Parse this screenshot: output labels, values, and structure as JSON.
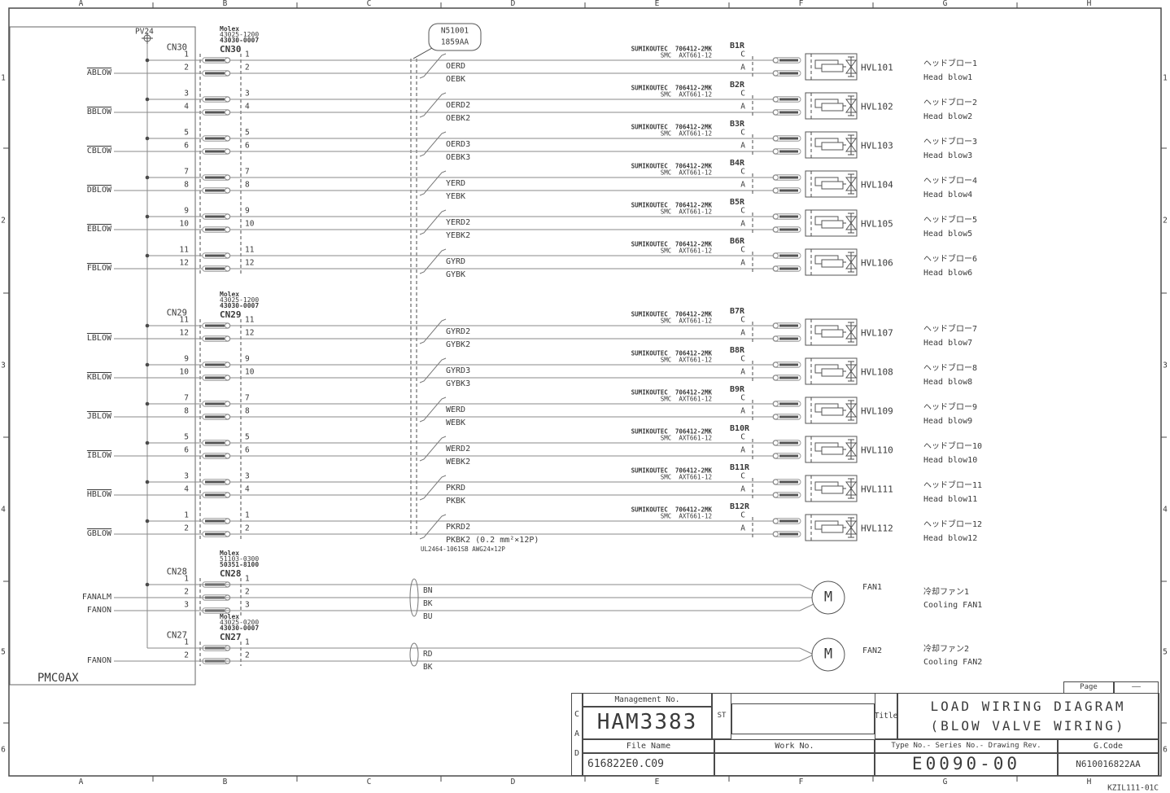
{
  "meta": {
    "doc_code": "KZIL111-01C"
  },
  "frame": {
    "columns": [
      "A",
      "B",
      "C",
      "D",
      "E",
      "F",
      "G",
      "H"
    ],
    "rows": [
      "1",
      "2",
      "3",
      "4",
      "5",
      "6"
    ]
  },
  "unit": {
    "name": "PMC0AX",
    "power": "PV24"
  },
  "harness_balloon": {
    "line1": "N51001",
    "line2": "1859AA"
  },
  "cable_spec": "UL2464-1061SB AWG24×12P",
  "valve_vendor": {
    "line1": "SUMIKOUTEC  706412-2MK",
    "line2": "SMC  AXT661-12"
  },
  "connector_groups": [
    {
      "id": "CN30",
      "maker": "Molex",
      "part_numbers": [
        "43025-1200",
        "43030-0007"
      ],
      "channels": [
        {
          "pins": [
            "1",
            "2"
          ],
          "signal": "ABLOW",
          "wires": [
            "OERD",
            "OEBK"
          ],
          "tag": "B1R",
          "pin_labels": [
            "C",
            "A"
          ],
          "valve": "HVL101",
          "name_jp": "ヘッドブロー1",
          "name_en": "Head blow1"
        },
        {
          "pins": [
            "3",
            "4"
          ],
          "signal": "BBLOW",
          "wires": [
            "OERD2",
            "OEBK2"
          ],
          "tag": "B2R",
          "pin_labels": [
            "C",
            "A"
          ],
          "valve": "HVL102",
          "name_jp": "ヘッドブロー2",
          "name_en": "Head blow2"
        },
        {
          "pins": [
            "5",
            "6"
          ],
          "signal": "CBLOW",
          "wires": [
            "OERD3",
            "OEBK3"
          ],
          "tag": "B3R",
          "pin_labels": [
            "C",
            "A"
          ],
          "valve": "HVL103",
          "name_jp": "ヘッドブロー3",
          "name_en": "Head blow3"
        },
        {
          "pins": [
            "7",
            "8"
          ],
          "signal": "DBLOW",
          "wires": [
            "YERD",
            "YEBK"
          ],
          "tag": "B4R",
          "pin_labels": [
            "C",
            "A"
          ],
          "valve": "HVL104",
          "name_jp": "ヘッドブロー4",
          "name_en": "Head blow4"
        },
        {
          "pins": [
            "9",
            "10"
          ],
          "signal": "EBLOW",
          "wires": [
            "YERD2",
            "YEBK2"
          ],
          "tag": "B5R",
          "pin_labels": [
            "C",
            "A"
          ],
          "valve": "HVL105",
          "name_jp": "ヘッドブロー5",
          "name_en": "Head blow5"
        },
        {
          "pins": [
            "11",
            "12"
          ],
          "signal": "FBLOW",
          "wires": [
            "GYRD",
            "GYBK"
          ],
          "tag": "B6R",
          "pin_labels": [
            "C",
            "A"
          ],
          "valve": "HVL106",
          "name_jp": "ヘッドブロー6",
          "name_en": "Head blow6"
        }
      ]
    },
    {
      "id": "CN29",
      "maker": "Molex",
      "part_numbers": [
        "43025-1200",
        "43030-0007"
      ],
      "channels": [
        {
          "pins": [
            "11",
            "12"
          ],
          "signal": "LBLOW",
          "wires": [
            "GYRD2",
            "GYBK2"
          ],
          "tag": "B7R",
          "pin_labels": [
            "C",
            "A"
          ],
          "valve": "HVL107",
          "name_jp": "ヘッドブロー7",
          "name_en": "Head blow7"
        },
        {
          "pins": [
            "9",
            "10"
          ],
          "signal": "KBLOW",
          "wires": [
            "GYRD3",
            "GYBK3"
          ],
          "tag": "B8R",
          "pin_labels": [
            "C",
            "A"
          ],
          "valve": "HVL108",
          "name_jp": "ヘッドブロー8",
          "name_en": "Head blow8"
        },
        {
          "pins": [
            "7",
            "8"
          ],
          "signal": "JBLOW",
          "wires": [
            "WERD",
            "WEBK"
          ],
          "tag": "B9R",
          "pin_labels": [
            "C",
            "A"
          ],
          "valve": "HVL109",
          "name_jp": "ヘッドブロー9",
          "name_en": "Head blow9"
        },
        {
          "pins": [
            "5",
            "6"
          ],
          "signal": "IBLOW",
          "wires": [
            "WERD2",
            "WEBK2"
          ],
          "tag": "B10R",
          "pin_labels": [
            "C",
            "A"
          ],
          "valve": "HVL110",
          "name_jp": "ヘッドブロー10",
          "name_en": "Head blow10"
        },
        {
          "pins": [
            "3",
            "4"
          ],
          "signal": "HBLOW",
          "wires": [
            "PKRD",
            "PKBK"
          ],
          "tag": "B11R",
          "pin_labels": [
            "C",
            "A"
          ],
          "valve": "HVL111",
          "name_jp": "ヘッドブロー11",
          "name_en": "Head blow11"
        },
        {
          "pins": [
            "1",
            "2"
          ],
          "signal": "GBLOW",
          "wires": [
            "PKRD2",
            "PKBK2 (0.2 mm²×12P)"
          ],
          "tag": "B12R",
          "pin_labels": [
            "C",
            "A"
          ],
          "valve": "HVL112",
          "name_jp": "ヘッドブロー12",
          "name_en": "Head blow12"
        }
      ]
    },
    {
      "id": "CN28",
      "maker": "Molex",
      "part_numbers": [
        "51103-0300",
        "50351-8100"
      ],
      "fan": {
        "pins": [
          "1",
          "2",
          "3"
        ],
        "signals": [
          "FANALM",
          "FANON"
        ],
        "wires": [
          "BN",
          "BK",
          "BU"
        ],
        "motor": "M",
        "tag": "FAN1",
        "name_jp": "冷却ファン1",
        "name_en": "Cooling FAN1"
      }
    },
    {
      "id": "CN27",
      "maker": "Molex",
      "part_numbers": [
        "43025-0200",
        "43030-0007"
      ],
      "fan": {
        "pins": [
          "1",
          "2"
        ],
        "signals": [
          "FANON"
        ],
        "wires": [
          "RD",
          "BK"
        ],
        "motor": "M",
        "tag": "FAN2",
        "name_jp": "冷却ファン2",
        "name_en": "Cooling FAN2"
      }
    }
  ],
  "title_block": {
    "cad_letters": [
      "C",
      "A",
      "D"
    ],
    "management_label": "Management No.",
    "management_no": "HAM3383",
    "st_label": "ST",
    "title_label": "Title",
    "title_line1": "LOAD WIRING DIAGRAM",
    "title_line2": "(BLOW VALVE WIRING)",
    "file_name_label": "File Name",
    "file_name": "616822E0.C09",
    "work_no_label": "Work No.",
    "work_no": "",
    "type_label": "Type No.- Series No.- Drawing Rev.",
    "type_no": "E0090-00",
    "gcode_label": "G.Code",
    "gcode": "N610016822AA",
    "page_label": "Page",
    "page_value": "——"
  },
  "colors": {
    "line": "#4a4a4a",
    "wire": "#8a8a8a",
    "text": "#3a3a3a"
  }
}
